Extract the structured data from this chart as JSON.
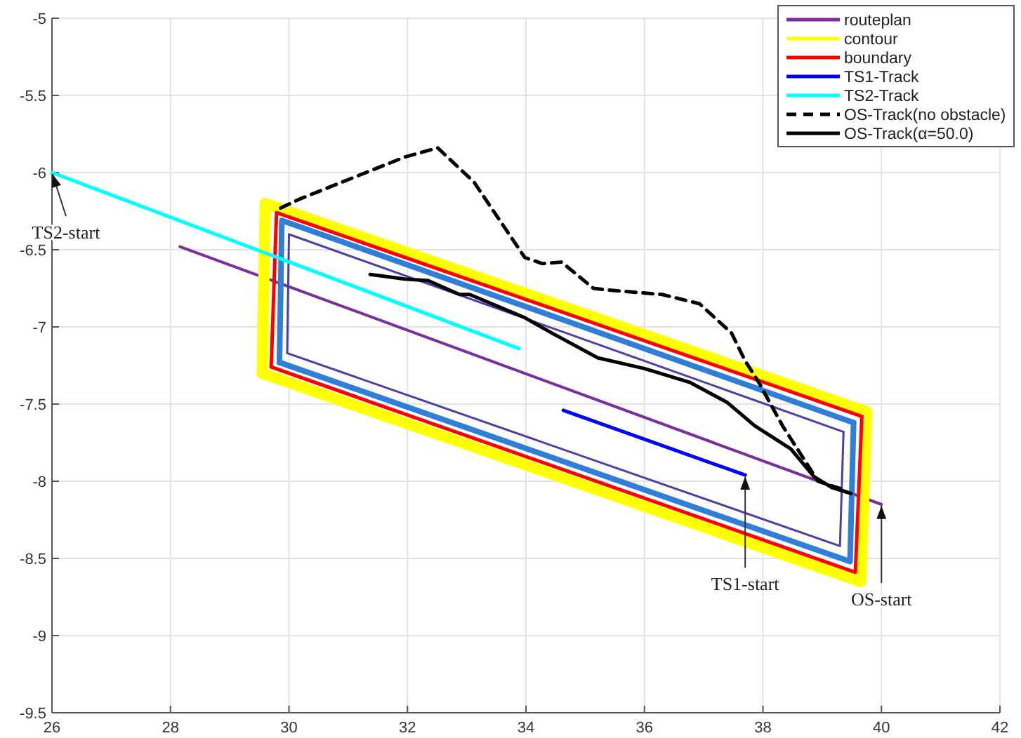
{
  "chart_data": {
    "type": "line",
    "xlim": [
      26,
      42
    ],
    "ylim": [
      -9.5,
      -5
    ],
    "xticks": [
      26,
      28,
      30,
      32,
      34,
      36,
      38,
      40,
      42
    ],
    "yticks": [
      -9.5,
      -9,
      -8.5,
      -8,
      -7.5,
      -7,
      -6.5,
      -6,
      -5.5,
      -5
    ],
    "grid": true,
    "legend": "top right",
    "marker": "none",
    "series": [
      {
        "name": "routeplan",
        "color": "#7b2f9e",
        "x": [
          28.16,
          40.0
        ],
        "values": [
          -6.48,
          -8.15
        ]
      },
      {
        "name": "contour",
        "color": "#ffff00",
        "x": [
          29.55,
          29.6,
          39.75
        ],
        "values": [
          -7.3,
          -6.2,
          -7.55
        ]
      },
      {
        "color": "#ffff00",
        "x": [
          29.55,
          39.65,
          39.75
        ],
        "values": [
          -7.3,
          -8.65,
          -7.55
        ]
      },
      {
        "color": "#2f7fd8",
        "x": [
          29.84,
          29.88,
          39.53
        ],
        "values": [
          -7.23,
          -6.31,
          -7.62
        ]
      },
      {
        "color": "#2f7fd8",
        "x": [
          29.84,
          39.47,
          39.53
        ],
        "values": [
          -7.23,
          -8.52,
          -7.62
        ]
      },
      {
        "color": "#4a3fa8",
        "x": [
          29.97,
          30.0,
          39.36
        ],
        "values": [
          -7.17,
          -6.4,
          -7.68
        ]
      },
      {
        "color": "#4a3fa8",
        "x": [
          29.97,
          39.3,
          39.36
        ],
        "values": [
          -7.17,
          -8.42,
          -7.68
        ]
      },
      {
        "name": "boundary",
        "color": "#ff0000",
        "x": [
          29.7,
          29.79,
          39.67
        ],
        "values": [
          -7.26,
          -6.26,
          -7.58
        ]
      },
      {
        "color": "#ff0000",
        "x": [
          29.7,
          39.56,
          39.67
        ],
        "values": [
          -7.26,
          -8.59,
          -7.58
        ]
      },
      {
        "name": "TS1-Track",
        "color": "#0000ff",
        "x": [
          34.63,
          37.7
        ],
        "values": [
          -7.54,
          -7.96
        ]
      },
      {
        "name": "TS2-Track",
        "color": "#00ffff",
        "x": [
          26,
          33.88
        ],
        "values": [
          -6,
          -7.14
        ]
      },
      {
        "name": "OS-Track(no obstacle)",
        "color": "#000000",
        "line_style": "dashed",
        "x": [
          29.86,
          30.19,
          31.95,
          32.51,
          33.12,
          33.98,
          34.28,
          34.6,
          35.14,
          35.37,
          36.3,
          36.93,
          37.47,
          37.7,
          37.93,
          38.33,
          38.63,
          38.93,
          39.4
        ],
        "values": [
          -6.23,
          -6.17,
          -5.9,
          -5.84,
          -6.06,
          -6.55,
          -6.59,
          -6.58,
          -6.75,
          -6.76,
          -6.79,
          -6.85,
          -7.04,
          -7.22,
          -7.36,
          -7.64,
          -7.82,
          -8.0,
          -8.06
        ]
      },
      {
        "name": "OS-Track(α=50.0)",
        "color": "#000000",
        "line_style": "solid",
        "x": [
          31.37,
          31.58,
          31.95,
          32.35,
          32.88,
          33.05,
          33.98,
          34.44,
          35.21,
          36.0,
          36.77,
          37.4,
          37.86,
          38.47,
          38.86,
          39.16,
          39.49
        ],
        "values": [
          -6.66,
          -6.67,
          -6.69,
          -6.7,
          -6.79,
          -6.79,
          -6.94,
          -7.04,
          -7.2,
          -7.27,
          -7.36,
          -7.49,
          -7.64,
          -7.79,
          -7.97,
          -8.04,
          -8.08
        ]
      }
    ],
    "annotations": [
      {
        "text": "TS2-start",
        "x": 26,
        "y": -6
      },
      {
        "text": "TS1-start",
        "x": 37.7,
        "y": -7.96
      },
      {
        "text": "OS-start",
        "x": 40.0,
        "y": -8.15
      }
    ]
  }
}
